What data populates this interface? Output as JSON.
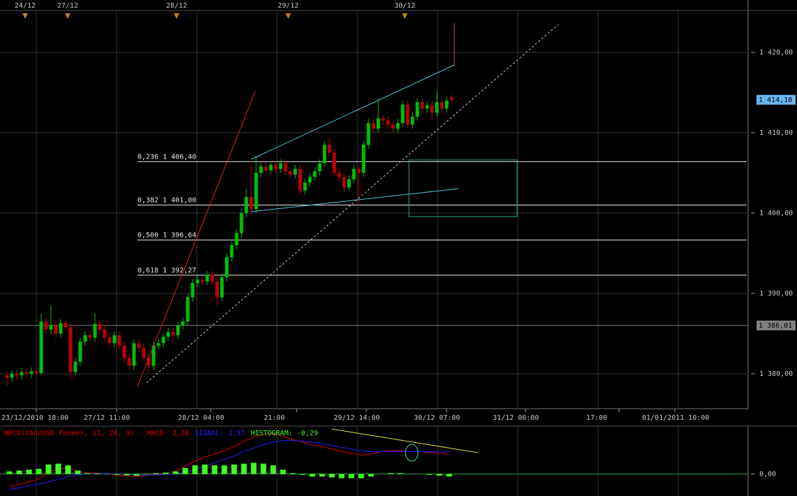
{
  "chart_data": [
    {
      "type": "candlestick",
      "ylim": [
        1375.65,
        1426.52
      ],
      "yticks": [
        {
          "value": 1380,
          "label": "1 380,00"
        },
        {
          "value": 1390,
          "label": "1 390,00"
        },
        {
          "value": 1400,
          "label": "1 400,00"
        },
        {
          "value": 1410,
          "label": "1 410,00"
        },
        {
          "value": 1420,
          "label": "1 420,00"
        }
      ],
      "grid": true,
      "up_color": "#00c000",
      "down_color": "#c00000",
      "xticks": [
        "23/12/2010 18:00",
        "27/12 11:00",
        "28/12 04:00",
        "21:00",
        "29/12 14:00",
        "30/12 07:00",
        "31/12 00:00",
        "17:00",
        "01/01/2011 10:00"
      ],
      "top_dates": [
        "24/12",
        "27/12",
        "28/12",
        "29/12",
        "30/12"
      ],
      "price_tags": [
        {
          "value": 1414.1,
          "label": "1 414,10",
          "color": "#6ab4f0",
          "line": false
        },
        {
          "value": 1386.01,
          "label": "1 386,01",
          "color": "#808080",
          "line": true
        }
      ],
      "levels": [
        {
          "value": 1406.4,
          "label": "0,236 1 406,40"
        },
        {
          "value": 1401,
          "label": "0,382 1 401,00"
        },
        {
          "value": 1396.64,
          "label": "0,500 1 396,64"
        },
        {
          "value": 1392.27,
          "label": "0,618 1 392,27"
        }
      ],
      "open": [
        1379.8,
        1379.5,
        1380,
        1379.8,
        1380.2,
        1380,
        1380.3,
        1380.1,
        1386.5,
        1385.5,
        1386,
        1385,
        1386.3,
        1385.8,
        1380.2,
        1381.5,
        1384,
        1384.8,
        1384.5,
        1386.2,
        1385.5,
        1384.5,
        1383.8,
        1384.8,
        1383.5,
        1382,
        1381,
        1383.8,
        1383.2,
        1382,
        1381,
        1383.5,
        1383.8,
        1384.6,
        1385.2,
        1384.8,
        1386,
        1386.5,
        1389.5,
        1391.3,
        1391.7,
        1391.5,
        1392.3,
        1391.5,
        1389.5,
        1392,
        1394.5,
        1396,
        1397.5,
        1400,
        1402,
        1400.5,
        1405,
        1405.8,
        1405.3,
        1406,
        1405.5,
        1406.2,
        1405.2,
        1404.8,
        1405.5,
        1402.8,
        1403.8,
        1404.5,
        1405.2,
        1406.2,
        1408.5,
        1407.5,
        1405,
        1404.5,
        1403.2,
        1404.2,
        1405.5,
        1405,
        1408.5,
        1411.2,
        1410.5,
        1411.8,
        1411.5,
        1411,
        1410.5,
        1411.2,
        1413.5,
        1411,
        1412,
        1413.8,
        1413,
        1413.4,
        1412.5,
        1413.8,
        1413,
        1414.4
      ],
      "high": [
        1380.3,
        1380.5,
        1380.5,
        1380.7,
        1380.7,
        1380.8,
        1380.8,
        1387.5,
        1387,
        1388.5,
        1386.5,
        1386.8,
        1386.8,
        1386.3,
        1382,
        1384.5,
        1385.3,
        1385.3,
        1387.5,
        1386.7,
        1386,
        1385,
        1385.3,
        1385.3,
        1384,
        1382.5,
        1384.3,
        1384.3,
        1383.7,
        1382.5,
        1384,
        1384.3,
        1385.1,
        1385.7,
        1385.7,
        1386.5,
        1387,
        1390,
        1391.8,
        1392.2,
        1392.2,
        1392.8,
        1392.8,
        1392,
        1392.5,
        1395,
        1396.5,
        1398,
        1400.5,
        1403,
        1406,
        1407,
        1406.3,
        1406.3,
        1406.5,
        1406.5,
        1406.7,
        1406.7,
        1405.7,
        1406,
        1406,
        1404.3,
        1405,
        1405.7,
        1406.7,
        1409,
        1409.3,
        1408,
        1405.5,
        1405,
        1404.7,
        1406,
        1406,
        1409,
        1411.7,
        1411.7,
        1414.3,
        1412.3,
        1412,
        1411.5,
        1411.7,
        1414,
        1414,
        1412.5,
        1414.3,
        1414.3,
        1413.9,
        1413.9,
        1415.1,
        1414.3,
        1414.5,
        1414.7
      ],
      "low": [
        1378.5,
        1379,
        1379.3,
        1379.3,
        1379.5,
        1379.5,
        1379.6,
        1379.8,
        1385,
        1385,
        1384.5,
        1384.5,
        1385.3,
        1379.2,
        1379.8,
        1381,
        1383.5,
        1384,
        1384,
        1385,
        1384,
        1383.3,
        1383.3,
        1383,
        1381.5,
        1380.5,
        1380.5,
        1382.7,
        1381.5,
        1380.2,
        1380.5,
        1383,
        1383.3,
        1384.1,
        1384.3,
        1384.3,
        1385.5,
        1386,
        1389,
        1390.8,
        1391,
        1391,
        1391,
        1388.5,
        1389,
        1391.5,
        1394,
        1395.5,
        1396.8,
        1399.5,
        1400,
        1400,
        1404.5,
        1404.8,
        1404.8,
        1405,
        1405,
        1404.7,
        1404.3,
        1404.3,
        1402.3,
        1402.3,
        1403.3,
        1404,
        1404.7,
        1405.7,
        1407,
        1404.5,
        1404,
        1402.5,
        1402.7,
        1403.7,
        1401,
        1404.5,
        1408,
        1410,
        1410,
        1411,
        1410.5,
        1410,
        1410,
        1410.7,
        1410.5,
        1410.5,
        1411.5,
        1412.5,
        1412.5,
        1411.5,
        1412,
        1412.5,
        1412.5,
        1413.7
      ],
      "close": [
        1379.5,
        1380,
        1379.8,
        1380.2,
        1380,
        1380.3,
        1380.1,
        1386.5,
        1385.5,
        1386,
        1385,
        1386.3,
        1385.8,
        1380.2,
        1381.5,
        1384,
        1384.8,
        1384.5,
        1386.2,
        1385.5,
        1384.5,
        1383.8,
        1384.8,
        1383.5,
        1382,
        1381,
        1383.8,
        1383.2,
        1382,
        1381,
        1383.5,
        1383.8,
        1384.6,
        1385.2,
        1384.8,
        1386,
        1386.5,
        1389.5,
        1391.3,
        1391.7,
        1391.5,
        1392.3,
        1391.5,
        1389.5,
        1392,
        1394.5,
        1396,
        1397.5,
        1400,
        1402,
        1400.5,
        1405,
        1405.8,
        1405.3,
        1406,
        1405.5,
        1406.2,
        1405.2,
        1404.8,
        1405.5,
        1402.8,
        1403.8,
        1404.5,
        1405.2,
        1406.2,
        1408.5,
        1407.5,
        1405,
        1404.5,
        1403.2,
        1404.2,
        1405.5,
        1405,
        1408.5,
        1411.2,
        1410.5,
        1411.8,
        1411.5,
        1411,
        1410.5,
        1411.2,
        1413.5,
        1411,
        1412,
        1413.8,
        1413,
        1413.4,
        1412.5,
        1413.8,
        1413,
        1414,
        1414.1
      ]
    },
    {
      "type": "macd",
      "ylim": [
        -2.4,
        5.4
      ],
      "yticks": [
        {
          "value": 0,
          "label": "0,00"
        }
      ],
      "series": [
        {
          "name": "MACD(XAU/USD.Fermer, 12, 26, 9) - MACD: 2,28",
          "color": "#e00000",
          "values": [
            -1.5,
            -1.2,
            -0.9,
            -0.6,
            0.2,
            0.6,
            0.7,
            0.3,
            0.1,
            0.1,
            0,
            -0.1,
            -0.2,
            -0.3,
            -0.2,
            0,
            0.1,
            0.3,
            0.9,
            1.5,
            2,
            2.3,
            2.7,
            3.2,
            3.8,
            4.3,
            4.6,
            4.7,
            4.4,
            4,
            3.7,
            3.4,
            3.2,
            2.9,
            2.6,
            2.4,
            2.2,
            2.3,
            2.6,
            2.7,
            2.7,
            2.6,
            2.6,
            2.5,
            2.4,
            2.28
          ]
        },
        {
          "name": "SIGNAL: 2,57",
          "color": "#2020ff",
          "values": [
            -1.8,
            -1.6,
            -1.4,
            -1.2,
            -0.9,
            -0.6,
            -0.3,
            -0.1,
            0,
            0.05,
            0.05,
            0,
            -0.05,
            -0.1,
            -0.15,
            -0.1,
            -0.05,
            0,
            0.2,
            0.5,
            0.9,
            1.3,
            1.7,
            2.1,
            2.6,
            3,
            3.4,
            3.7,
            3.9,
            3.9,
            3.8,
            3.7,
            3.5,
            3.3,
            3.1,
            2.9,
            2.7,
            2.6,
            2.6,
            2.6,
            2.6,
            2.6,
            2.6,
            2.6,
            2.58,
            2.57
          ]
        },
        {
          "name": "HISTOGRAM: -0,29",
          "color": "#40ff20",
          "values": [
            0.3,
            0.4,
            0.5,
            0.6,
            1.1,
            1.2,
            1,
            0.4,
            0.1,
            0.05,
            -0.05,
            -0.1,
            -0.15,
            -0.2,
            -0.05,
            0.1,
            0.15,
            0.3,
            0.7,
            1,
            1.1,
            1,
            1,
            1.1,
            1.2,
            1.3,
            1.2,
            1,
            0.5,
            0.1,
            -0.1,
            -0.3,
            -0.3,
            -0.4,
            -0.5,
            -0.5,
            -0.5,
            -0.3,
            0,
            0.1,
            0.1,
            0,
            0,
            -0.1,
            -0.18,
            -0.29
          ]
        }
      ]
    }
  ]
}
